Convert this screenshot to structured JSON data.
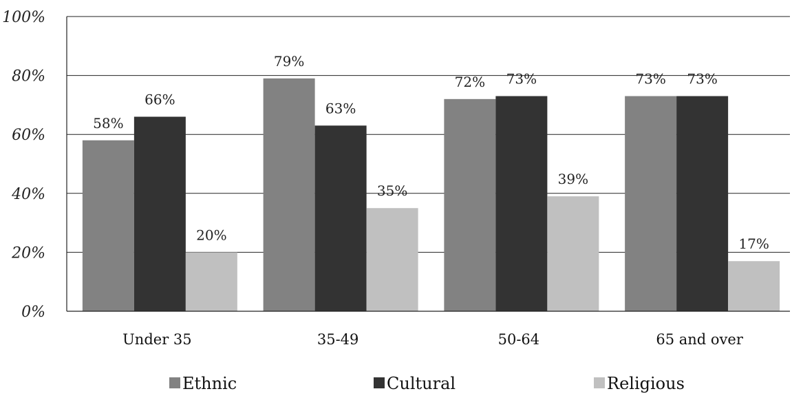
{
  "chart_data": {
    "type": "bar",
    "title": "",
    "xlabel": "",
    "ylabel": "",
    "ylim": [
      0,
      100
    ],
    "yticks": [
      0,
      20,
      40,
      60,
      80,
      100
    ],
    "ytick_suffix": "%",
    "grid": true,
    "legend_position": "bottom",
    "categories": [
      "Under 35",
      "35-49",
      "50-64",
      "65 and over"
    ],
    "series": [
      {
        "name": "Ethnic",
        "color": "#828282",
        "values": [
          58,
          79,
          72,
          73
        ],
        "labels": [
          "58%",
          "79%",
          "72%",
          "73%"
        ]
      },
      {
        "name": "Cultural",
        "color": "#333333",
        "values": [
          66,
          63,
          73,
          73
        ],
        "labels": [
          "66%",
          "63%",
          "73%",
          "73%"
        ]
      },
      {
        "name": "Religious",
        "color": "#c0c0c0",
        "values": [
          20,
          35,
          39,
          17
        ],
        "labels": [
          "20%",
          "35%",
          "39%",
          "17%"
        ]
      }
    ]
  }
}
